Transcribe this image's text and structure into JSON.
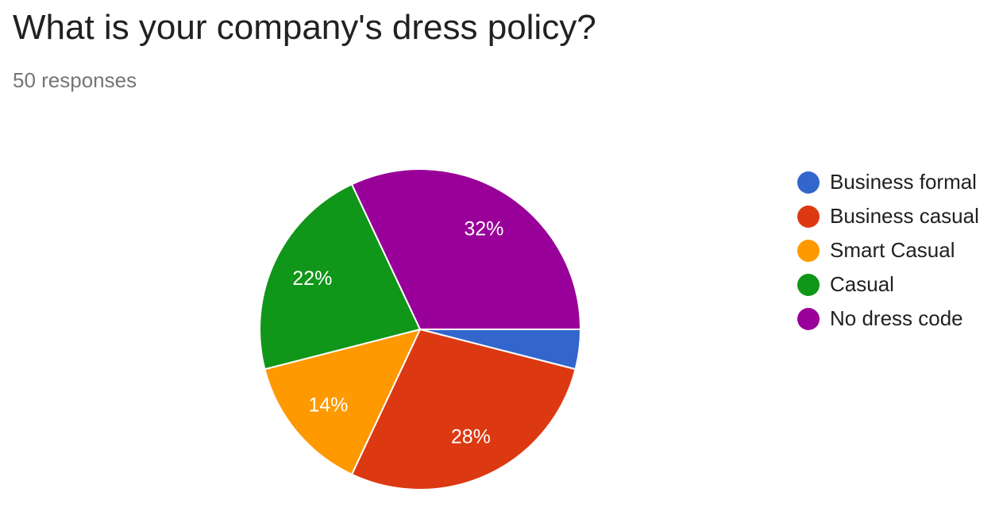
{
  "header": {
    "title": "What is your company's dress policy?",
    "subtitle": "50 responses"
  },
  "chart_data": {
    "type": "pie",
    "title": "What is your company's dress policy?",
    "subtitle": "50 responses",
    "legend_position": "right",
    "slices": [
      {
        "label": "Business formal",
        "value": 4,
        "label_text": "",
        "color": "#3366cc"
      },
      {
        "label": "Business casual",
        "value": 28,
        "label_text": "28%",
        "color": "#dc3912"
      },
      {
        "label": "Smart Casual",
        "value": 14,
        "label_text": "14%",
        "color": "#ff9900"
      },
      {
        "label": "Casual",
        "value": 22,
        "label_text": "22%",
        "color": "#109618"
      },
      {
        "label": "No dress code",
        "value": 32,
        "label_text": "32%",
        "color": "#990099"
      }
    ]
  }
}
